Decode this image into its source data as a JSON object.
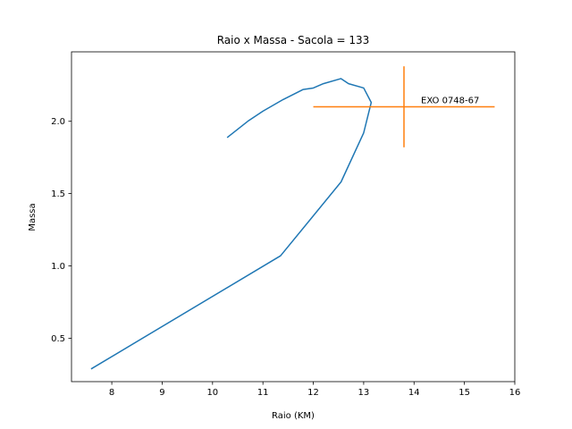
{
  "chart_data": {
    "type": "line",
    "title": "Raio x Massa - Sacola = 133",
    "xlabel": "Raio (KM)",
    "ylabel": "Massa",
    "xlim": [
      7.2,
      16.0
    ],
    "ylim": [
      0.2,
      2.48
    ],
    "xticks": [
      8,
      9,
      10,
      11,
      12,
      13,
      14,
      15,
      16
    ],
    "yticks": [
      0.5,
      1.0,
      1.5,
      2.0
    ],
    "xtick_labels": [
      "8",
      "9",
      "10",
      "11",
      "12",
      "13",
      "14",
      "15",
      "16"
    ],
    "ytick_labels": [
      "0.5",
      "1.0",
      "1.5",
      "2.0"
    ],
    "grid": false,
    "series": [
      {
        "color": "#1f77b4",
        "x": [
          7.6,
          11.35,
          12.55,
          13.0,
          13.15,
          13.0,
          12.7,
          12.55,
          12.2,
          12.0,
          11.8,
          11.4,
          11.0,
          10.7,
          10.3
        ],
        "y": [
          0.29,
          1.07,
          1.58,
          1.92,
          2.13,
          2.23,
          2.26,
          2.295,
          2.26,
          2.23,
          2.22,
          2.15,
          2.07,
          2.0,
          1.89
        ]
      }
    ],
    "errorbars": [
      {
        "label": "EXO 0748-67",
        "color": "#ff7f0e",
        "x": 13.8,
        "y": 2.1,
        "xerr": [
          12.0,
          15.6
        ],
        "yerr": [
          1.82,
          2.38
        ]
      }
    ]
  }
}
